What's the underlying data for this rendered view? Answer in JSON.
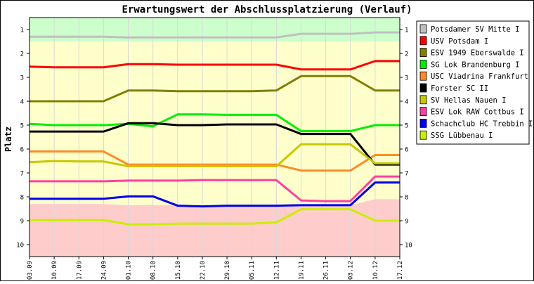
{
  "chart_data": {
    "type": "line",
    "title": "Erwartungswert der Abschlussplatzierung (Verlauf)",
    "xlabel": "",
    "ylabel": "Platz",
    "ylim": [
      10.5,
      0.5
    ],
    "y_ticks": [
      1,
      2,
      3,
      4,
      5,
      6,
      7,
      8,
      9,
      10
    ],
    "x": [
      "03.09",
      "10.09",
      "17.09",
      "24.09",
      "01.10",
      "08.10",
      "15.10",
      "22.10",
      "29.10",
      "05.11",
      "12.11",
      "19.11",
      "26.11",
      "03.12",
      "10.12",
      "17.12"
    ],
    "zones": [
      {
        "color": "#ccffcc",
        "top": [
          0.5,
          0.5,
          0.5,
          0.5,
          0.5,
          0.5,
          0.5,
          0.5,
          0.5,
          0.5,
          0.5,
          0.5,
          0.5,
          0.5,
          0.5,
          0.5
        ],
        "bottom": [
          1.5,
          1.5,
          1.5,
          1.5,
          1.5,
          1.5,
          1.5,
          1.5,
          1.5,
          1.5,
          1.5,
          1.5,
          1.5,
          1.5,
          1.5,
          1.5
        ]
      },
      {
        "color": "#ffffcc",
        "top": [
          1.5,
          1.5,
          1.5,
          1.5,
          1.5,
          1.5,
          1.5,
          1.5,
          1.5,
          1.5,
          1.5,
          1.5,
          1.5,
          1.5,
          1.5,
          1.5
        ],
        "bottom": [
          8.3,
          8.3,
          8.3,
          8.3,
          8.35,
          8.35,
          8.35,
          8.35,
          8.35,
          8.35,
          8.35,
          8.35,
          8.35,
          8.35,
          8.1,
          8.1
        ]
      },
      {
        "color": "#ffcccc",
        "top": [
          8.3,
          8.3,
          8.3,
          8.3,
          8.35,
          8.35,
          8.35,
          8.35,
          8.35,
          8.35,
          8.35,
          8.35,
          8.35,
          8.35,
          8.1,
          8.1
        ],
        "bottom": [
          10.5,
          10.5,
          10.5,
          10.5,
          10.5,
          10.5,
          10.5,
          10.5,
          10.5,
          10.5,
          10.5,
          10.5,
          10.5,
          10.5,
          10.5,
          10.5
        ]
      }
    ],
    "series": [
      {
        "name": "Potsdamer SV Mitte I",
        "color": "#c0c0c0",
        "values": [
          1.3,
          1.3,
          1.3,
          1.3,
          1.33,
          1.33,
          1.33,
          1.33,
          1.33,
          1.33,
          1.33,
          1.18,
          1.18,
          1.18,
          1.12,
          1.12
        ]
      },
      {
        "name": "USV Potsdam I",
        "color": "#ff0000",
        "values": [
          2.55,
          2.58,
          2.58,
          2.58,
          2.45,
          2.45,
          2.47,
          2.47,
          2.47,
          2.47,
          2.47,
          2.67,
          2.67,
          2.67,
          2.32,
          2.32
        ]
      },
      {
        "name": "ESV 1949 Eberswalde I",
        "color": "#808000",
        "values": [
          4.0,
          4.0,
          4.0,
          4.0,
          3.55,
          3.55,
          3.58,
          3.58,
          3.58,
          3.58,
          3.55,
          2.95,
          2.95,
          2.95,
          3.55,
          3.55
        ]
      },
      {
        "name": "SG Lok Brandenburg I",
        "color": "#00ee00",
        "values": [
          4.95,
          5.0,
          5.0,
          5.0,
          4.95,
          5.05,
          4.55,
          4.55,
          4.57,
          4.57,
          4.57,
          5.25,
          5.25,
          5.25,
          5.0,
          5.0
        ]
      },
      {
        "name": "USC Viadrina Frankfurt",
        "color": "#ff8c26",
        "values": [
          6.1,
          6.1,
          6.1,
          6.1,
          6.65,
          6.65,
          6.65,
          6.65,
          6.65,
          6.65,
          6.65,
          6.9,
          6.9,
          6.9,
          6.25,
          6.25
        ]
      },
      {
        "name": "Forster SC II",
        "color": "#000000",
        "values": [
          5.27,
          5.27,
          5.27,
          5.27,
          4.92,
          4.92,
          5.0,
          5.0,
          4.97,
          4.97,
          4.97,
          5.37,
          5.37,
          5.37,
          6.65,
          6.65
        ]
      },
      {
        "name": "SV Hellas Nauen I",
        "color": "#c8c800",
        "values": [
          6.55,
          6.5,
          6.52,
          6.52,
          6.72,
          6.72,
          6.72,
          6.72,
          6.72,
          6.72,
          6.72,
          5.8,
          5.8,
          5.8,
          6.6,
          6.6
        ]
      },
      {
        "name": "ESV Lok RAW Cottbus I",
        "color": "#ff40a0",
        "values": [
          7.35,
          7.35,
          7.35,
          7.35,
          7.32,
          7.32,
          7.32,
          7.3,
          7.3,
          7.3,
          7.3,
          8.15,
          8.18,
          8.18,
          7.15,
          7.15
        ]
      },
      {
        "name": "Schachclub HC Trebbin I",
        "color": "#0000ee",
        "values": [
          8.08,
          8.08,
          8.08,
          8.08,
          7.98,
          7.98,
          8.37,
          8.4,
          8.37,
          8.37,
          8.37,
          8.35,
          8.35,
          8.35,
          7.4,
          7.4
        ]
      },
      {
        "name": "SSG Lübbenau I",
        "color": "#ccee00",
        "values": [
          8.97,
          8.97,
          8.97,
          8.97,
          9.15,
          9.15,
          9.12,
          9.12,
          9.12,
          9.12,
          9.07,
          8.52,
          8.52,
          8.52,
          9.0,
          9.0
        ]
      }
    ]
  }
}
